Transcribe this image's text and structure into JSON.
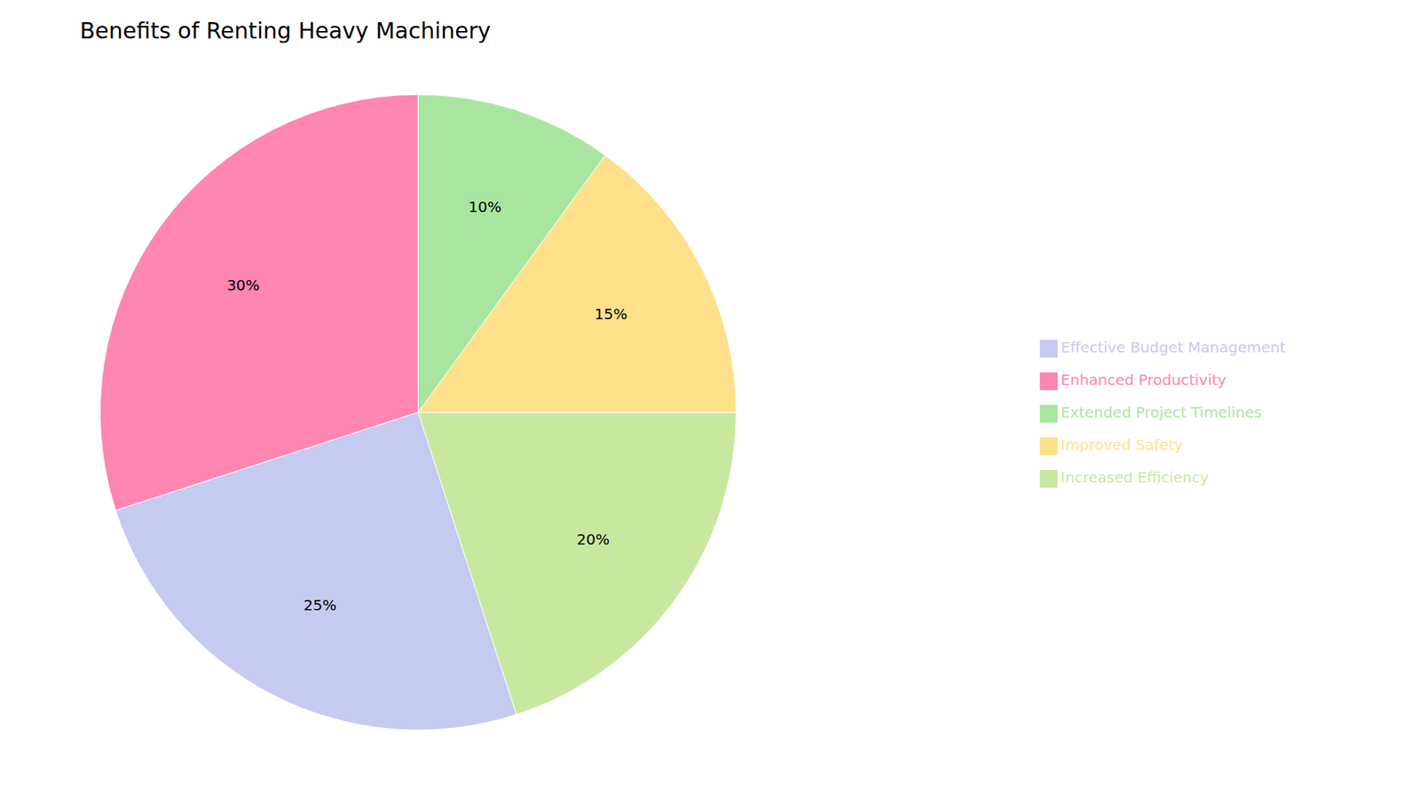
{
  "chart_data": {
    "type": "pie",
    "title": "Benefits of Renting Heavy Machinery",
    "categories": [
      "Enhanced Productivity",
      "Effective Budget Management",
      "Increased Efficiency",
      "Improved Safety",
      "Extended Project Timelines"
    ],
    "values": [
      30,
      25,
      20,
      15,
      10
    ],
    "value_labels": [
      "30%",
      "25%",
      "20%",
      "15%",
      "10%"
    ],
    "colors": [
      "#FF85B3",
      "#C5CAF0",
      "#C8E8A0",
      "#FFE08A",
      "#A8E6A0"
    ],
    "data_labels": true,
    "legend": "right"
  }
}
